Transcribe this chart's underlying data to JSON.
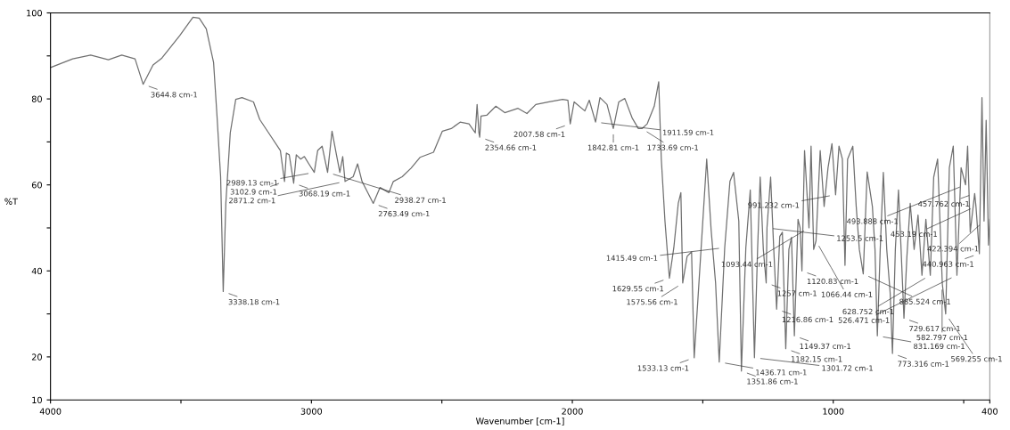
{
  "chart_data": {
    "type": "line",
    "xlabel": "Wavenumber [cm-1]",
    "ylabel": "%T",
    "xlim": [
      4000,
      400
    ],
    "ylim": [
      10,
      100
    ],
    "xticks": [
      4000,
      {
        "value": 3500,
        "label": null
      },
      3000,
      {
        "value": 2500,
        "label": null
      },
      2000,
      {
        "value": 1500,
        "label": null
      },
      1000,
      {
        "value": 500,
        "label": null
      },
      400
    ],
    "yticks": [
      10,
      20,
      {
        "value": 30,
        "label": null
      },
      40,
      {
        "value": 50,
        "label": null
      },
      60,
      {
        "value": 70,
        "label": null
      },
      80,
      {
        "value": 90,
        "label": null
      },
      100
    ],
    "grid": false,
    "legend": false,
    "marker": "none",
    "line_style": "solid",
    "series": [
      {
        "color": "#707070",
        "x": [
          4000,
          3915,
          3846,
          3778,
          3727,
          3676,
          3645,
          3607,
          3573,
          3505,
          3454,
          3430,
          3403,
          3375,
          3362,
          3348,
          3338,
          3328,
          3311,
          3290,
          3266,
          3222,
          3198,
          3164,
          3119,
          3103,
          3096,
          3085,
          3068,
          3058,
          3041,
          3027,
          3010,
          2989,
          2976,
          2959,
          2938,
          2921,
          2904,
          2891,
          2880,
          2871,
          2840,
          2823,
          2806,
          2789,
          2763,
          2737,
          2703,
          2686,
          2652,
          2618,
          2584,
          2532,
          2515,
          2498,
          2464,
          2430,
          2396,
          2372,
          2365,
          2358,
          2355,
          2350,
          2328,
          2293,
          2259,
          2208,
          2174,
          2140,
          2089,
          2037,
          2017,
          2008,
          1993,
          1952,
          1935,
          1911,
          1894,
          1867,
          1843,
          1822,
          1799,
          1771,
          1747,
          1733,
          1713,
          1686,
          1669,
          1659,
          1645,
          1628,
          1611,
          1594,
          1584,
          1577,
          1560,
          1543,
          1533,
          1519,
          1485,
          1468,
          1451,
          1437,
          1416,
          1396,
          1382,
          1362,
          1352,
          1335,
          1318,
          1302,
          1290,
          1280,
          1268,
          1257,
          1254,
          1240,
          1228,
          1217,
          1205,
          1195,
          1182,
          1170,
          1160,
          1149,
          1135,
          1127,
          1120,
          1110,
          1093,
          1085,
          1075,
          1066,
          1050,
          1035,
          1020,
          1005,
          991,
          978,
          965,
          955,
          945,
          925,
          912,
          900,
          885,
          870,
          850,
          840,
          831,
          820,
          808,
          795,
          782,
          773,
          762,
          750,
          740,
          729,
          718,
          705,
          690,
          675,
          660,
          645,
          628,
          615,
          600,
          582,
          569,
          555,
          540,
          526,
          510,
          493,
          485,
          475,
          458,
          453,
          440,
          430,
          422,
          414,
          405,
          400
        ],
        "values": [
          87.3,
          89.3,
          90.2,
          89.1,
          90.2,
          89.3,
          83.4,
          87.9,
          89.5,
          94.7,
          99.0,
          98.8,
          96.3,
          88.5,
          76.2,
          61.9,
          35.2,
          55.7,
          72.1,
          79.9,
          80.3,
          79.3,
          75.2,
          72.1,
          68.0,
          60.8,
          67.4,
          67.0,
          60.4,
          67.0,
          66.0,
          66.6,
          64.9,
          62.9,
          68.0,
          69.0,
          62.9,
          72.5,
          67.0,
          62.9,
          66.6,
          60.8,
          61.9,
          64.9,
          60.8,
          58.8,
          55.7,
          59.4,
          58.2,
          60.8,
          61.9,
          63.9,
          66.4,
          67.6,
          70.1,
          72.5,
          73.1,
          74.6,
          74.2,
          72.1,
          78.7,
          72.1,
          71.1,
          76.0,
          76.2,
          78.3,
          76.8,
          77.8,
          76.6,
          78.7,
          79.3,
          79.9,
          79.7,
          74.2,
          79.3,
          77.2,
          79.7,
          74.6,
          80.3,
          78.7,
          73.1,
          79.3,
          80.1,
          75.6,
          73.1,
          73.1,
          74.2,
          78.3,
          84.0,
          66.0,
          51.6,
          38.3,
          45.4,
          55.7,
          58.2,
          37.2,
          43.4,
          44.4,
          19.8,
          33.1,
          66.0,
          49.5,
          37.2,
          18.8,
          45.4,
          60.8,
          62.9,
          51.6,
          16.7,
          45.4,
          58.8,
          19.8,
          45.0,
          61.8,
          45.0,
          37.2,
          50.0,
          61.8,
          45.0,
          31.1,
          48.0,
          49.0,
          21.9,
          45.0,
          47.8,
          24.9,
          52.0,
          50.0,
          40.0,
          68.0,
          50.0,
          69.0,
          45.0,
          47.0,
          68.0,
          55.0,
          64.0,
          69.6,
          57.7,
          69.0,
          66.0,
          41.3,
          66.0,
          69.0,
          55.0,
          45.0,
          39.3,
          63.0,
          55.0,
          45.0,
          24.9,
          45.0,
          62.9,
          45.0,
          35.0,
          20.8,
          45.0,
          58.8,
          45.0,
          29.0,
          43.0,
          55.7,
          45.0,
          53.0,
          39.0,
          52.0,
          39.0,
          61.8,
          66.0,
          37.0,
          30.0,
          64.0,
          69.0,
          39.0,
          64.0,
          60.0,
          69.0,
          49.0,
          58.0,
          55.0,
          44.0,
          80.3,
          51.6,
          75.0,
          46.0,
          52.0
        ]
      }
    ],
    "annotations": [
      {
        "text": "3644.8 cm-1",
        "x": 3644.8,
        "y": 83.4
      },
      {
        "text": "3338.18 cm-1",
        "x": 3338.18,
        "y": 35.2
      },
      {
        "text": "3102.9 cm-1",
        "x": 3102.9,
        "y": 60.8
      },
      {
        "text": "3068.19 cm-1",
        "x": 3068.19,
        "y": 60.4
      },
      {
        "text": "2989.13 cm-1",
        "x": 2989.13,
        "y": 62.9
      },
      {
        "text": "2938.27 cm-1",
        "x": 2938.27,
        "y": 62.9
      },
      {
        "text": "2871.2 cm-1",
        "x": 2871.2,
        "y": 60.8
      },
      {
        "text": "2763.49 cm-1",
        "x": 2763.49,
        "y": 55.7
      },
      {
        "text": "2354.66 cm-1",
        "x": 2354.66,
        "y": 71.1
      },
      {
        "text": "2007.58 cm-1",
        "x": 2007.58,
        "y": 74.2
      },
      {
        "text": "1911.59 cm-1",
        "x": 1911.59,
        "y": 74.6
      },
      {
        "text": "1842.81 cm-1",
        "x": 1842.81,
        "y": 73.1
      },
      {
        "text": "1733.69 cm-1",
        "x": 1733.69,
        "y": 73.1
      },
      {
        "text": "1629.55 cm-1",
        "x": 1629.55,
        "y": 38.3
      },
      {
        "text": "1575.56 cm-1",
        "x": 1575.56,
        "y": 37.2
      },
      {
        "text": "1533.13 cm-1",
        "x": 1533.13,
        "y": 19.8
      },
      {
        "text": "1436.71 cm-1",
        "x": 1436.71,
        "y": 18.8
      },
      {
        "text": "1415.49 cm-1",
        "x": 1415.49,
        "y": 45.4
      },
      {
        "text": "1351.86 cm-1",
        "x": 1351.86,
        "y": 16.7
      },
      {
        "text": "1301.72 cm-1",
        "x": 1301.72,
        "y": 19.8
      },
      {
        "text": "1257 cm-1",
        "x": 1257,
        "y": 37.2
      },
      {
        "text": "1253.5 cm-1",
        "x": 1253.5,
        "y": 50.0
      },
      {
        "text": "1216.86 cm-1",
        "x": 1216.86,
        "y": 31.1
      },
      {
        "text": "1182.15 cm-1",
        "x": 1182.15,
        "y": 21.9
      },
      {
        "text": "1149.37 cm-1",
        "x": 1149.37,
        "y": 24.9
      },
      {
        "text": "1120.83 cm-1",
        "x": 1120.83,
        "y": 40.0
      },
      {
        "text": "1093.44 cm-1",
        "x": 1093.44,
        "y": 50.0
      },
      {
        "text": "1066.44 cm-1",
        "x": 1066.44,
        "y": 47.0
      },
      {
        "text": "991.232 cm-1",
        "x": 991.232,
        "y": 57.7
      },
      {
        "text": "885.524 cm-1",
        "x": 885.524,
        "y": 39.3
      },
      {
        "text": "831.169 cm-1",
        "x": 831.169,
        "y": 24.9
      },
      {
        "text": "773.316 cm-1",
        "x": 773.316,
        "y": 20.8
      },
      {
        "text": "729.617 cm-1",
        "x": 729.617,
        "y": 29.0
      },
      {
        "text": "628.752 cm-1",
        "x": 628.752,
        "y": 39.0
      },
      {
        "text": "582.797 cm-1",
        "x": 582.797,
        "y": 37.0
      },
      {
        "text": "569.255 cm-1",
        "x": 569.255,
        "y": 30.0
      },
      {
        "text": "526.471 cm-1",
        "x": 526.471,
        "y": 39.0
      },
      {
        "text": "493.888 cm-1",
        "x": 493.888,
        "y": 60.0
      },
      {
        "text": "457.762 cm-1",
        "x": 457.762,
        "y": 58.0
      },
      {
        "text": "453.19 cm-1",
        "x": 453.19,
        "y": 55.0
      },
      {
        "text": "440.963 cm-1",
        "x": 440.963,
        "y": 44.0
      },
      {
        "text": "422.394 cm-1",
        "x": 422.394,
        "y": 51.6
      }
    ]
  }
}
